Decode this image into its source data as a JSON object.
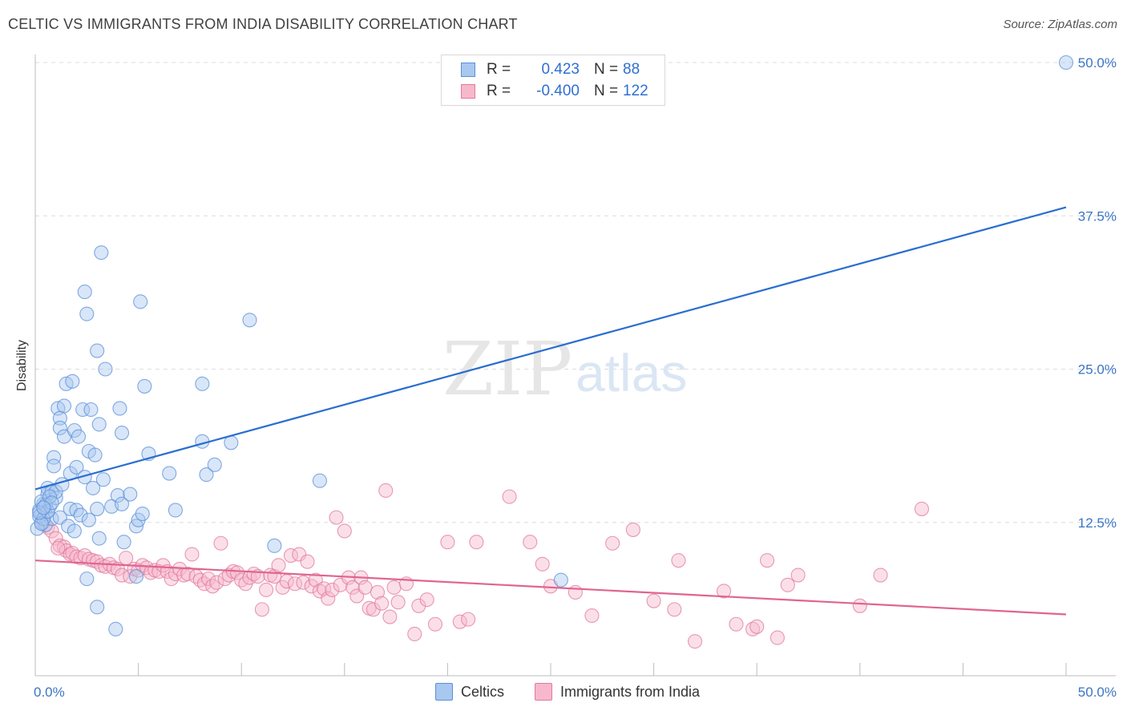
{
  "title": "CELTIC VS IMMIGRANTS FROM INDIA DISABILITY CORRELATION CHART",
  "source": "Source: ZipAtlas.com",
  "watermark": {
    "zip": "ZIP",
    "atlas": "atlas"
  },
  "legend": {
    "rows": [
      {
        "r_label": "R =",
        "r_value": "0.423",
        "n_label": "N =",
        "n_value": "88",
        "color": "#a8c8f0",
        "stroke": "#5b8fd8"
      },
      {
        "r_label": "R =",
        "r_value": "-0.400",
        "n_label": "N =",
        "n_value": "122",
        "color": "#f7b8cc",
        "stroke": "#e07a9c"
      }
    ]
  },
  "bottom_legend": [
    {
      "label": "Celtics",
      "color": "#a8c8f0",
      "stroke": "#5b8fd8"
    },
    {
      "label": "Immigrants from India",
      "color": "#f7b8cc",
      "stroke": "#e07a9c"
    }
  ],
  "chart_data": {
    "type": "scatter",
    "title": "CELTIC VS IMMIGRANTS FROM INDIA DISABILITY CORRELATION CHART",
    "xlabel": "",
    "ylabel": "Disability",
    "xlim": [
      0,
      50
    ],
    "ylim": [
      0,
      50
    ],
    "x_tick_labels": [
      "0.0%",
      "50.0%"
    ],
    "y_ticks": [
      12.5,
      25.0,
      37.5,
      50.0
    ],
    "y_tick_labels": [
      "12.5%",
      "25.0%",
      "37.5%",
      "50.0%"
    ],
    "grid": true,
    "legend_placement": "top-center",
    "series": [
      {
        "name": "Celtics",
        "color": "#5b8fd8",
        "fill": "#a8c8f0",
        "trend": [
          [
            0,
            15.2
          ],
          [
            50,
            38.2
          ]
        ],
        "points": [
          [
            0.2,
            13.5
          ],
          [
            0.3,
            12.5
          ],
          [
            0.4,
            14.0
          ],
          [
            0.5,
            13.2
          ],
          [
            0.5,
            12.3
          ],
          [
            0.6,
            14.8
          ],
          [
            0.6,
            15.3
          ],
          [
            0.7,
            13.8
          ],
          [
            0.8,
            15.0
          ],
          [
            0.8,
            12.8
          ],
          [
            0.9,
            17.8
          ],
          [
            0.9,
            17.1
          ],
          [
            1.0,
            14.5
          ],
          [
            1.0,
            15.0
          ],
          [
            1.1,
            21.8
          ],
          [
            1.2,
            21.0
          ],
          [
            1.2,
            20.2
          ],
          [
            1.2,
            12.9
          ],
          [
            1.3,
            15.6
          ],
          [
            1.4,
            19.5
          ],
          [
            1.4,
            22.0
          ],
          [
            1.5,
            23.8
          ],
          [
            1.6,
            12.2
          ],
          [
            1.7,
            16.5
          ],
          [
            1.7,
            13.6
          ],
          [
            1.8,
            24.0
          ],
          [
            1.9,
            20.0
          ],
          [
            1.9,
            11.8
          ],
          [
            2.0,
            17.0
          ],
          [
            2.0,
            13.5
          ],
          [
            2.1,
            19.5
          ],
          [
            2.2,
            13.1
          ],
          [
            2.3,
            21.7
          ],
          [
            2.4,
            16.2
          ],
          [
            2.4,
            31.3
          ],
          [
            2.5,
            29.5
          ],
          [
            2.5,
            7.9
          ],
          [
            2.6,
            12.7
          ],
          [
            2.6,
            18.3
          ],
          [
            2.7,
            21.7
          ],
          [
            2.8,
            15.3
          ],
          [
            2.9,
            18.0
          ],
          [
            3.0,
            13.6
          ],
          [
            3.0,
            26.5
          ],
          [
            3.0,
            5.6
          ],
          [
            3.1,
            20.5
          ],
          [
            3.1,
            11.2
          ],
          [
            3.2,
            34.5
          ],
          [
            3.3,
            16.0
          ],
          [
            3.4,
            25.0
          ],
          [
            3.7,
            13.8
          ],
          [
            3.9,
            3.8
          ],
          [
            4.0,
            14.7
          ],
          [
            4.1,
            21.8
          ],
          [
            4.2,
            14.0
          ],
          [
            4.2,
            19.8
          ],
          [
            4.3,
            10.9
          ],
          [
            4.6,
            14.8
          ],
          [
            4.9,
            8.1
          ],
          [
            4.9,
            12.2
          ],
          [
            5.0,
            12.7
          ],
          [
            5.1,
            30.5
          ],
          [
            5.2,
            13.2
          ],
          [
            5.3,
            23.6
          ],
          [
            5.5,
            18.1
          ],
          [
            6.5,
            16.5
          ],
          [
            6.8,
            13.5
          ],
          [
            8.1,
            23.8
          ],
          [
            8.1,
            19.1
          ],
          [
            8.3,
            16.4
          ],
          [
            8.7,
            17.2
          ],
          [
            9.5,
            19.0
          ],
          [
            10.4,
            29.0
          ],
          [
            11.6,
            10.6
          ],
          [
            13.8,
            15.9
          ],
          [
            25.5,
            7.8
          ],
          [
            50.0,
            50.0
          ],
          [
            0.1,
            12.0
          ],
          [
            0.2,
            13.0
          ],
          [
            0.3,
            14.2
          ],
          [
            0.4,
            12.8
          ],
          [
            0.5,
            13.9
          ],
          [
            0.7,
            14.6
          ],
          [
            0.6,
            13.4
          ],
          [
            0.3,
            12.4
          ],
          [
            0.2,
            13.3
          ],
          [
            0.8,
            14.1
          ],
          [
            0.4,
            13.7
          ]
        ]
      },
      {
        "name": "Immigrants from India",
        "color": "#e07a9c",
        "fill": "#f7b8cc",
        "trend": [
          [
            0,
            9.4
          ],
          [
            50,
            5.0
          ]
        ],
        "points": [
          [
            0.3,
            13.2
          ],
          [
            0.4,
            12.5
          ],
          [
            0.6,
            12.1
          ],
          [
            0.8,
            11.8
          ],
          [
            1.0,
            11.2
          ],
          [
            1.2,
            10.6
          ],
          [
            1.4,
            10.5
          ],
          [
            1.5,
            10.2
          ],
          [
            1.7,
            9.9
          ],
          [
            1.8,
            10.0
          ],
          [
            2.0,
            9.7
          ],
          [
            2.2,
            9.6
          ],
          [
            2.4,
            9.8
          ],
          [
            2.6,
            9.5
          ],
          [
            2.8,
            9.4
          ],
          [
            3.0,
            9.3
          ],
          [
            3.2,
            9.0
          ],
          [
            3.4,
            8.9
          ],
          [
            3.6,
            9.1
          ],
          [
            3.8,
            8.8
          ],
          [
            4.0,
            8.7
          ],
          [
            4.2,
            8.2
          ],
          [
            4.4,
            9.6
          ],
          [
            4.6,
            8.1
          ],
          [
            4.8,
            8.7
          ],
          [
            5.0,
            8.6
          ],
          [
            5.2,
            9.0
          ],
          [
            5.4,
            8.8
          ],
          [
            5.6,
            8.4
          ],
          [
            5.8,
            8.6
          ],
          [
            6.0,
            8.5
          ],
          [
            6.2,
            9.0
          ],
          [
            6.4,
            8.5
          ],
          [
            6.6,
            7.9
          ],
          [
            6.8,
            8.3
          ],
          [
            7.0,
            8.7
          ],
          [
            7.2,
            8.2
          ],
          [
            7.4,
            8.3
          ],
          [
            7.6,
            9.9
          ],
          [
            7.8,
            8.1
          ],
          [
            8.0,
            7.8
          ],
          [
            8.2,
            7.5
          ],
          [
            8.4,
            7.9
          ],
          [
            8.6,
            7.3
          ],
          [
            8.8,
            7.6
          ],
          [
            9.0,
            10.8
          ],
          [
            9.2,
            7.9
          ],
          [
            9.4,
            8.2
          ],
          [
            9.6,
            8.5
          ],
          [
            9.8,
            8.4
          ],
          [
            10.0,
            7.8
          ],
          [
            10.2,
            7.5
          ],
          [
            10.4,
            8.0
          ],
          [
            10.6,
            8.3
          ],
          [
            10.8,
            8.1
          ],
          [
            11.0,
            5.4
          ],
          [
            11.2,
            7.0
          ],
          [
            11.4,
            8.2
          ],
          [
            11.6,
            8.1
          ],
          [
            11.8,
            9.0
          ],
          [
            12.0,
            7.2
          ],
          [
            12.2,
            7.7
          ],
          [
            12.4,
            9.8
          ],
          [
            12.6,
            7.5
          ],
          [
            12.8,
            9.9
          ],
          [
            13.0,
            7.6
          ],
          [
            13.2,
            9.3
          ],
          [
            13.4,
            7.3
          ],
          [
            13.6,
            7.8
          ],
          [
            13.8,
            6.9
          ],
          [
            14.0,
            7.1
          ],
          [
            14.2,
            6.3
          ],
          [
            14.4,
            7.0
          ],
          [
            14.6,
            12.9
          ],
          [
            14.8,
            7.4
          ],
          [
            15.0,
            11.8
          ],
          [
            15.2,
            8.0
          ],
          [
            15.4,
            7.2
          ],
          [
            15.6,
            6.5
          ],
          [
            15.8,
            8.0
          ],
          [
            16.0,
            7.2
          ],
          [
            16.2,
            5.5
          ],
          [
            16.4,
            5.4
          ],
          [
            16.6,
            6.8
          ],
          [
            16.8,
            5.9
          ],
          [
            17.0,
            15.1
          ],
          [
            17.2,
            4.8
          ],
          [
            17.4,
            7.2
          ],
          [
            17.6,
            6.0
          ],
          [
            18.0,
            7.5
          ],
          [
            18.4,
            3.4
          ],
          [
            18.6,
            5.7
          ],
          [
            19.0,
            6.2
          ],
          [
            19.4,
            4.2
          ],
          [
            20.0,
            10.9
          ],
          [
            20.6,
            4.4
          ],
          [
            21.0,
            4.6
          ],
          [
            21.4,
            10.9
          ],
          [
            23.0,
            14.6
          ],
          [
            24.0,
            10.9
          ],
          [
            24.6,
            9.1
          ],
          [
            25.0,
            7.3
          ],
          [
            26.2,
            6.8
          ],
          [
            27.0,
            4.9
          ],
          [
            28.0,
            10.8
          ],
          [
            29.0,
            11.9
          ],
          [
            30.0,
            6.1
          ],
          [
            31.0,
            5.4
          ],
          [
            31.2,
            9.4
          ],
          [
            32.0,
            2.8
          ],
          [
            33.4,
            6.9
          ],
          [
            34.0,
            4.2
          ],
          [
            34.8,
            3.8
          ],
          [
            35.0,
            4.0
          ],
          [
            35.5,
            9.4
          ],
          [
            36.0,
            3.1
          ],
          [
            36.5,
            7.4
          ],
          [
            37.0,
            8.2
          ],
          [
            40.0,
            5.7
          ],
          [
            41.0,
            8.2
          ],
          [
            43.0,
            13.6
          ],
          [
            1.1,
            10.4
          ]
        ]
      }
    ]
  }
}
